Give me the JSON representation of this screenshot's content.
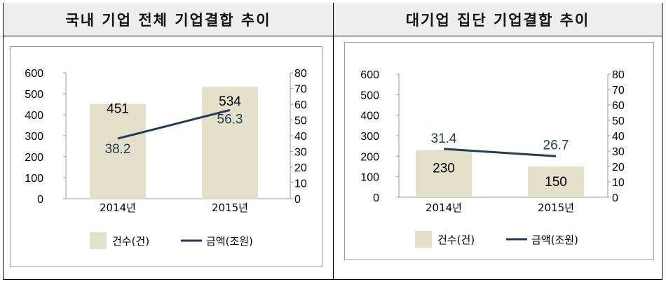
{
  "colors": {
    "bar": "#e3dfc9",
    "line": "#1f3d5c",
    "header_bg": "#eeeeee"
  },
  "chart_data": [
    {
      "type": "bar",
      "title": "국내 기업 전체 기업결합 추이",
      "categories": [
        "2014년",
        "2015년"
      ],
      "series": [
        {
          "name": "건수(건)",
          "type": "bar",
          "axis": "left",
          "values": [
            451,
            534
          ]
        },
        {
          "name": "금액(조원)",
          "type": "line",
          "axis": "right",
          "values": [
            38.2,
            56.3
          ]
        }
      ],
      "ylim_left": [
        0,
        600
      ],
      "yticks_left": [
        0,
        100,
        200,
        300,
        400,
        500,
        600
      ],
      "ylim_right": [
        0,
        80
      ],
      "yticks_right": [
        0,
        10,
        20,
        30,
        40,
        50,
        60,
        70,
        80
      ],
      "legend": "bottom",
      "grid": false
    },
    {
      "type": "bar",
      "title": "대기업 집단 기업결합 추이",
      "categories": [
        "2014년",
        "2015년"
      ],
      "series": [
        {
          "name": "건수(건)",
          "type": "bar",
          "axis": "left",
          "values": [
            230,
            150
          ]
        },
        {
          "name": "금액(조원)",
          "type": "line",
          "axis": "right",
          "values": [
            31.4,
            26.7
          ]
        }
      ],
      "ylim_left": [
        0,
        600
      ],
      "yticks_left": [
        0,
        100,
        200,
        300,
        400,
        500,
        600
      ],
      "ylim_right": [
        0,
        80
      ],
      "yticks_right": [
        0,
        10,
        20,
        30,
        40,
        50,
        60,
        70,
        80
      ],
      "legend": "bottom",
      "grid": false
    }
  ]
}
